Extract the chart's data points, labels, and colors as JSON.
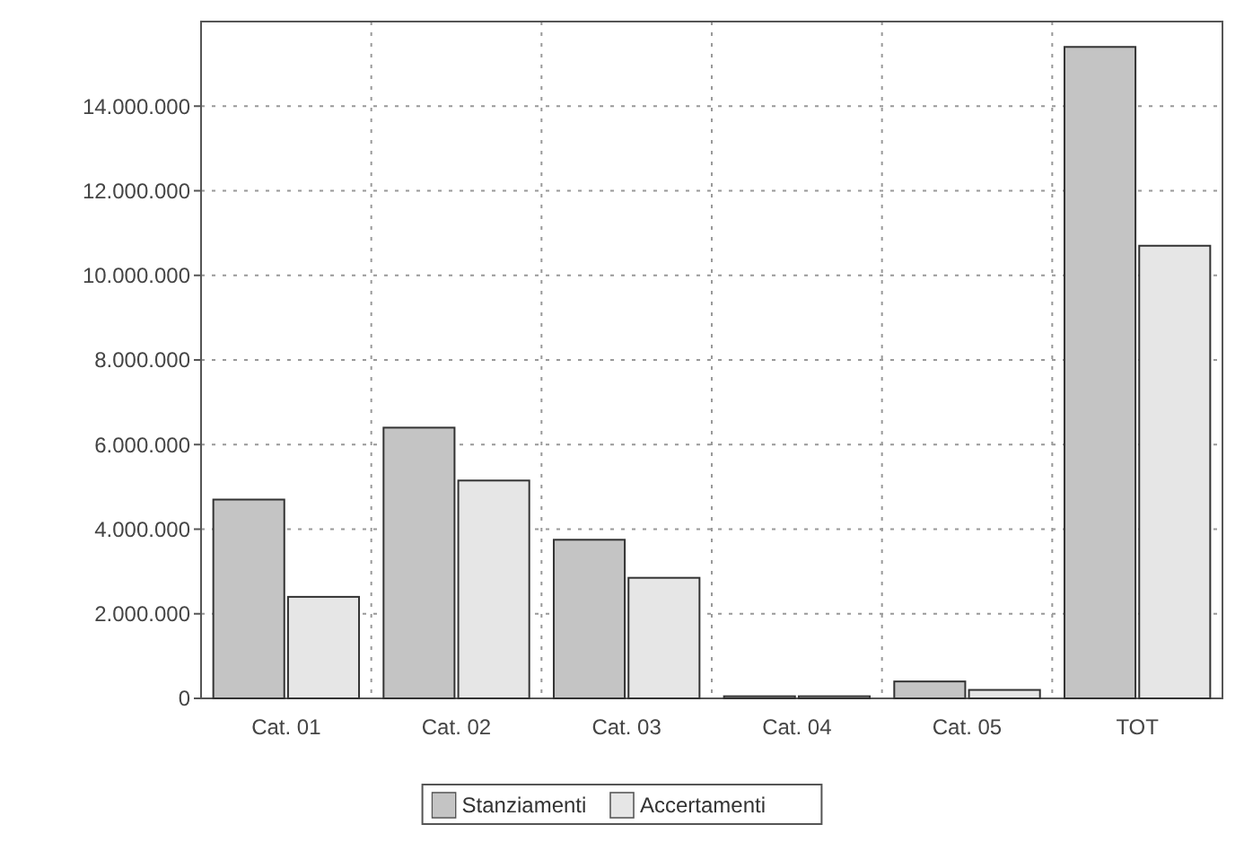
{
  "chart_data": {
    "type": "bar",
    "categories": [
      "Cat. 01",
      "Cat. 02",
      "Cat. 03",
      "Cat. 04",
      "Cat. 05",
      "TOT"
    ],
    "series": [
      {
        "name": "Stanziamenti",
        "color": "#c4c4c4",
        "values": [
          4700000,
          6400000,
          3750000,
          50000,
          400000,
          15400000
        ]
      },
      {
        "name": "Accertamenti",
        "color": "#e6e6e6",
        "values": [
          2400000,
          5150000,
          2850000,
          50000,
          200000,
          10700000
        ]
      }
    ],
    "ylim": [
      0,
      16000000
    ],
    "yticks": [
      {
        "value": 0,
        "label": "0"
      },
      {
        "value": 2000000,
        "label": "2.000.000"
      },
      {
        "value": 4000000,
        "label": "4.000.000"
      },
      {
        "value": 6000000,
        "label": "6.000.000"
      },
      {
        "value": 8000000,
        "label": "8.000.000"
      },
      {
        "value": 10000000,
        "label": "10.000.000"
      },
      {
        "value": 12000000,
        "label": "12.000.000"
      },
      {
        "value": 14000000,
        "label": "14.000.000"
      }
    ],
    "grid": true,
    "legend": "bottom"
  }
}
